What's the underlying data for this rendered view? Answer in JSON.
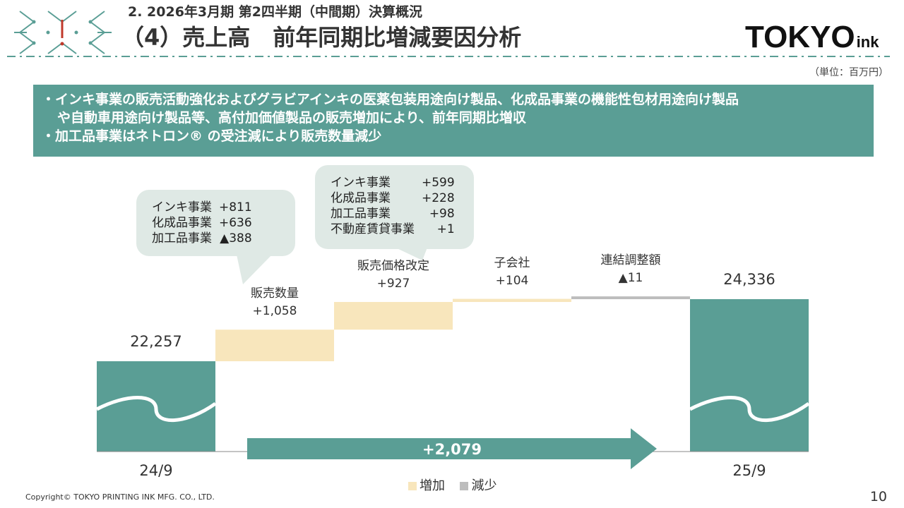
{
  "header": {
    "section_title": "2. 2026年3月期 第2四半期（中間期）決算概況",
    "slide_title": "（4）売上高　前年同期比増減要因分析",
    "brand_main": "TOKYO",
    "brand_sub": "ink",
    "unit": "（単位：百万円）"
  },
  "summary": {
    "line1": "・インキ事業の販売活動強化およびグラビアインキの医薬包装用途向け製品、化成品事業の機能性包材用途向け製品",
    "line2": "や自動車用途向け製品等、高付加価値製品の販売増加により、前年同期比増収",
    "line3": "・加工品事業はネトロン® の受注減により販売数量減少"
  },
  "callouts": {
    "volume": [
      {
        "name": "インキ事業",
        "value": "+811"
      },
      {
        "name": "化成品事業",
        "value": "+636"
      },
      {
        "name": "加工品事業",
        "value": "▲388"
      }
    ],
    "price": [
      {
        "name": "インキ事業",
        "value": "+599"
      },
      {
        "name": "化成品事業",
        "value": "+228"
      },
      {
        "name": "加工品事業",
        "value": "+98"
      },
      {
        "name": "不動産賃貸事業",
        "value": "+1"
      }
    ]
  },
  "chart_data": {
    "type": "bar",
    "subtype": "waterfall",
    "steps": [
      {
        "label": "24/9",
        "kind": "total",
        "value": 22257,
        "value_label": "22,257"
      },
      {
        "label": "販売数量",
        "kind": "delta",
        "value": 1058,
        "value_label": "+1,058"
      },
      {
        "label": "販売価格改定",
        "kind": "delta",
        "value": 927,
        "value_label": "+927"
      },
      {
        "label": "子会社",
        "kind": "delta",
        "value": 104,
        "value_label": "+104"
      },
      {
        "label": "連結調整額",
        "kind": "delta",
        "value": -11,
        "value_label": "▲11"
      },
      {
        "label": "25/9",
        "kind": "total",
        "value": 24336,
        "value_label": "24,336"
      }
    ],
    "total_change_label": "+2,079",
    "legend": [
      {
        "name": "増加",
        "color": "#f8e6bc"
      },
      {
        "name": "減少",
        "color": "#bdbdbd"
      }
    ],
    "colors": {
      "total": "#5a9e95",
      "increase": "#f8e6bc",
      "decrease": "#bdbdbd",
      "arrow": "#5a9e95"
    }
  },
  "footer": {
    "copyright": "Copyright© TOKYO PRINTING INK MFG. CO., LTD.",
    "page": "10"
  }
}
